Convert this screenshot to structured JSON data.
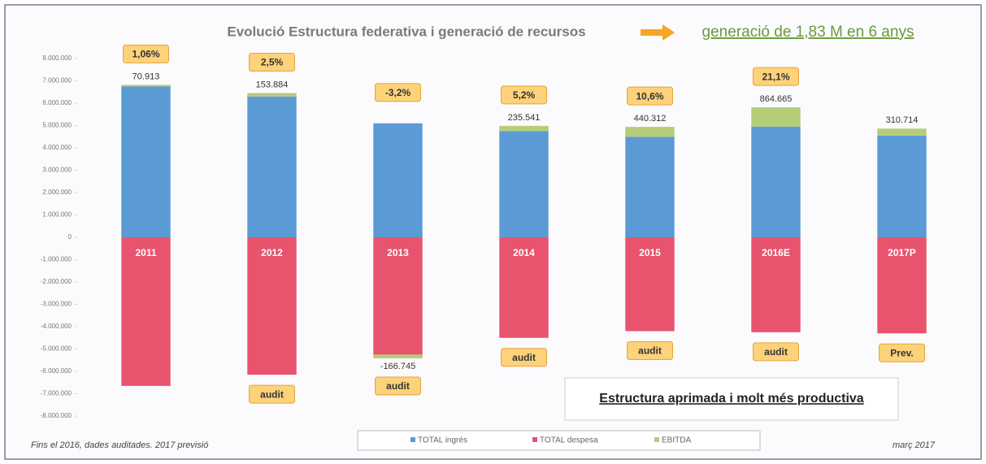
{
  "chart_data": {
    "type": "bar",
    "title": "Evolució Estructura federativa i generació de recursos",
    "subtitle": "generació de 1,83 M en 6 anys",
    "annotation": "Estructura aprimada i molt més productiva",
    "footnote": "Fins el 2016, dades auditades. 2017 previsió",
    "date_note": "març 2017",
    "categories": [
      "2011",
      "2012",
      "2013",
      "2014",
      "2015",
      "2016E",
      "2017P"
    ],
    "series": [
      {
        "name": "TOTAL ingrés",
        "color": "#5b9bd5",
        "values": [
          6750000,
          6300000,
          5100000,
          4750000,
          4500000,
          4950000,
          4550000
        ]
      },
      {
        "name": "TOTAL despesa",
        "color": "#e8546e",
        "values": [
          -6650000,
          -6150000,
          -5250000,
          -4500000,
          -4200000,
          -4250000,
          -4300000
        ]
      },
      {
        "name": "EBITDA",
        "color": "#b5cc78",
        "values": [
          70913,
          153884,
          -166745,
          235541,
          440312,
          864665,
          310714
        ],
        "value_labels": [
          "70.913",
          "153.884",
          "-166.745",
          "235.541",
          "440.312",
          "864.665",
          "310.714"
        ]
      }
    ],
    "growth_labels": [
      "1,06%",
      "2,5%",
      "-3,2%",
      "5,2%",
      "10,6%",
      "21,1%",
      null
    ],
    "status_labels": [
      null,
      "audit",
      "audit",
      "audit",
      "audit",
      "audit",
      "Prev."
    ],
    "ylim": [
      -8000000,
      8000000
    ],
    "yticks": [
      {
        "value": 8000000,
        "label": "8.000.000"
      },
      {
        "value": 7000000,
        "label": "7.000.000"
      },
      {
        "value": 6000000,
        "label": "6.000.000"
      },
      {
        "value": 5000000,
        "label": "5.000.000"
      },
      {
        "value": 4000000,
        "label": "4.000.000"
      },
      {
        "value": 3000000,
        "label": "3.000.000"
      },
      {
        "value": 2000000,
        "label": "2.000.000"
      },
      {
        "value": 1000000,
        "label": "1.000.000"
      },
      0,
      {
        "value": -1000000,
        "label": "-1.000.000"
      },
      {
        "value": -2000000,
        "label": "-2.000.000"
      },
      {
        "value": -3000000,
        "label": "-3.000.000"
      },
      {
        "value": -4000000,
        "label": "-4.000.000"
      },
      {
        "value": -5000000,
        "label": "-5.000.000"
      },
      {
        "value": -6000000,
        "label": "-6.000.000"
      },
      {
        "value": -7000000,
        "label": "-7.000.000"
      },
      {
        "value": -8000000,
        "label": "-8.000.000"
      }
    ],
    "grid": false,
    "legend": "bottom"
  }
}
